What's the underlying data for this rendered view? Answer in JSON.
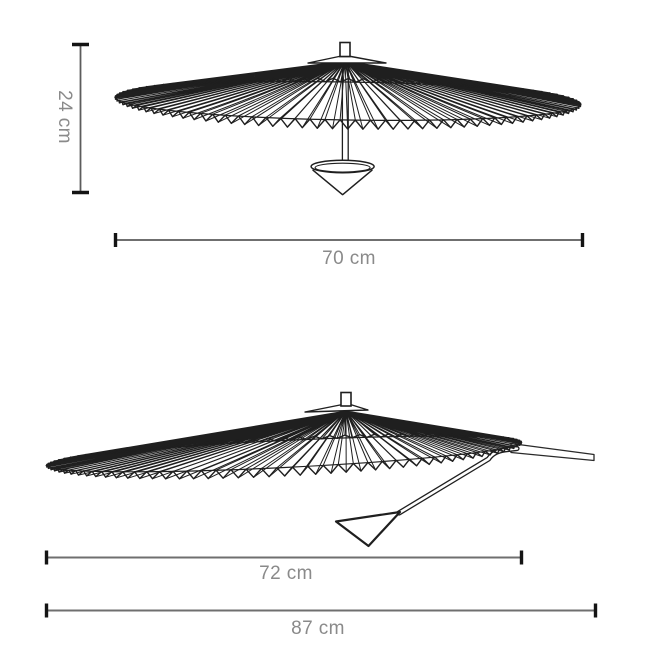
{
  "diagram": {
    "colors": {
      "ink": "#1f1f1f",
      "dimension_line": "#6f6f6f",
      "dimension_cap": "#141414",
      "label": "#8a8a8a",
      "background": "#ffffff"
    },
    "views": {
      "top": {
        "height_label": "24 cm",
        "width_label": "70 cm"
      },
      "bottom": {
        "shade_width_label": "72 cm",
        "total_width_label": "87 cm"
      }
    }
  }
}
